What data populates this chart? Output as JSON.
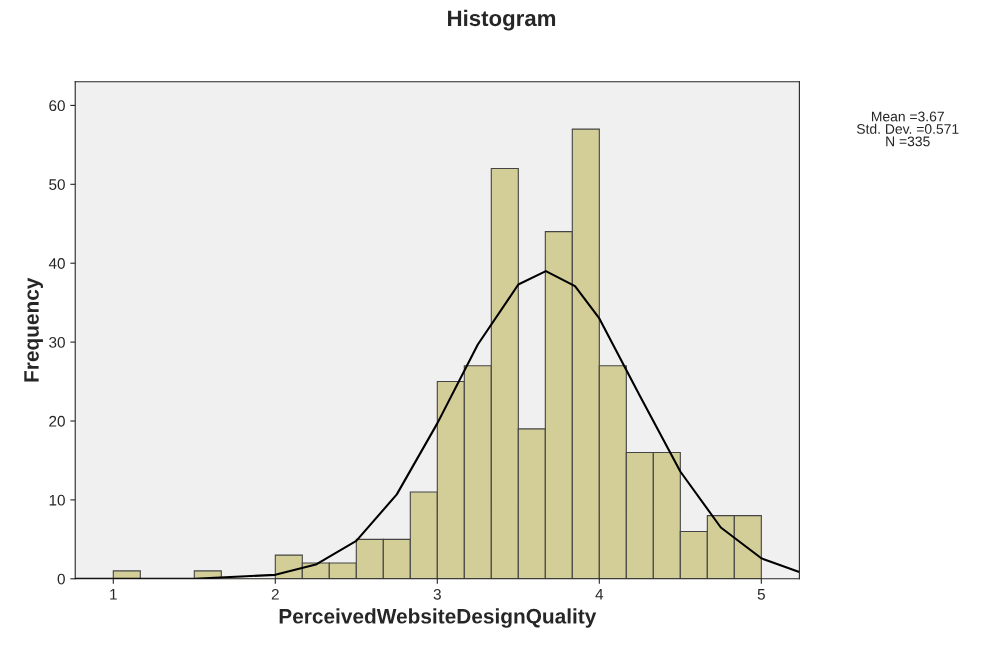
{
  "chart_data": {
    "type": "histogram",
    "title": "Histogram",
    "xlabel": "PerceivedWebsiteDesignQuality",
    "ylabel": "Frequency",
    "bins": [
      1,
      1.1667,
      1.3333,
      1.5,
      1.6667,
      1.8333,
      2,
      2.1667,
      2.3333,
      2.5,
      2.6667,
      2.8333,
      3,
      3.1667,
      3.3333,
      3.5,
      3.6667,
      3.8333,
      4,
      4.1667,
      4.3333,
      4.5,
      4.6667,
      4.8333,
      5
    ],
    "values": [
      1,
      0,
      0,
      1,
      0,
      0,
      3,
      2,
      2,
      5,
      5,
      11,
      25,
      27,
      52,
      19,
      44,
      57,
      27,
      16,
      16,
      6,
      8,
      8
    ],
    "color": "#d3ce97",
    "series": [
      {
        "type": "line",
        "color": "#000000",
        "x": [
          0.77,
          1.5,
          2.0,
          2.25,
          2.5,
          2.75,
          3.0,
          3.25,
          3.5,
          3.67,
          3.85,
          4.0,
          4.25,
          4.5,
          4.75,
          5.0,
          5.23
        ],
        "values": [
          0,
          0,
          0.5,
          1.8,
          4.8,
          10.7,
          19.7,
          29.7,
          37.3,
          39,
          37.1,
          33,
          23.2,
          13.6,
          6.5,
          2.6,
          0.9
        ]
      }
    ],
    "xlim": [
      0.765,
      5.235
    ],
    "xticks": [
      1,
      2,
      3,
      4,
      5
    ],
    "ylim": [
      0,
      63
    ],
    "yticks": [
      0,
      10,
      20,
      30,
      40,
      50,
      60
    ],
    "grid": false,
    "legend": false,
    "annotations": [
      "Mean =3.67",
      "Std. Dev. =0.571",
      "N =335"
    ]
  }
}
